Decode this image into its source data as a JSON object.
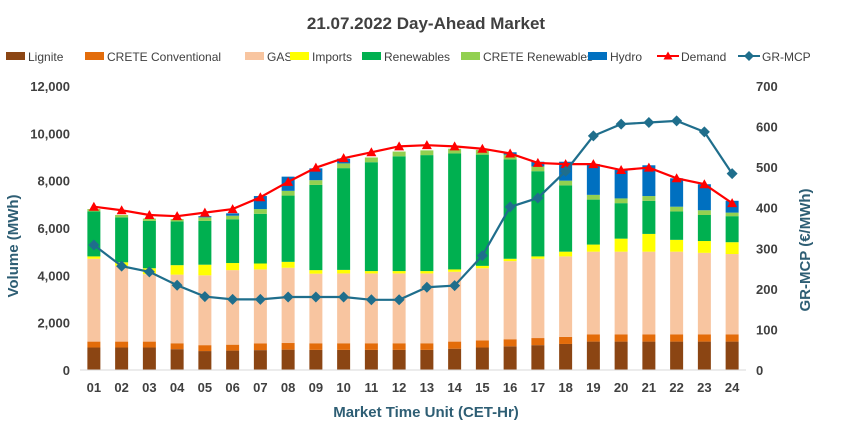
{
  "chart_data": {
    "type": "bar",
    "stacked": true,
    "title": "21.07.2022  Day-Ahead Market",
    "xlabel": "Market Time Unit (CET-Hr)",
    "ylabel": "Volume (MWh)",
    "y2label": "GR-MCP (€/MWh)",
    "ylim": [
      0,
      12000
    ],
    "y2lim": [
      0,
      700
    ],
    "yticks": [
      "0",
      "2,000",
      "4,000",
      "6,000",
      "8,000",
      "10,000",
      "12,000"
    ],
    "y2ticks": [
      "0",
      "100",
      "200",
      "300",
      "400",
      "500",
      "600",
      "700"
    ],
    "grid": false,
    "legend_position": "top",
    "categories": [
      "01",
      "02",
      "03",
      "04",
      "05",
      "06",
      "07",
      "08",
      "09",
      "10",
      "11",
      "12",
      "13",
      "14",
      "15",
      "16",
      "17",
      "18",
      "19",
      "20",
      "21",
      "22",
      "23",
      "24"
    ],
    "series": [
      {
        "name": "Lignite",
        "type": "bar",
        "color": "#8B4513",
        "values": [
          950,
          950,
          950,
          880,
          800,
          820,
          840,
          860,
          850,
          850,
          850,
          850,
          850,
          900,
          950,
          1000,
          1050,
          1100,
          1200,
          1200,
          1200,
          1200,
          1200,
          1200
        ]
      },
      {
        "name": "CRETE Conventional",
        "type": "bar",
        "color": "#E36C0A",
        "values": [
          250,
          250,
          250,
          250,
          250,
          250,
          280,
          280,
          280,
          280,
          280,
          280,
          280,
          300,
          300,
          300,
          300,
          300,
          300,
          300,
          300,
          300,
          300,
          300
        ]
      },
      {
        "name": "GAS",
        "type": "bar",
        "color": "#F8C5A0",
        "values": [
          3500,
          3200,
          2850,
          2900,
          2950,
          3150,
          3130,
          3180,
          2940,
          2950,
          2950,
          2950,
          2950,
          2950,
          3050,
          3300,
          3350,
          3400,
          3500,
          3500,
          3500,
          3500,
          3450,
          3400
        ]
      },
      {
        "name": "Imports",
        "type": "bar",
        "color": "#FFFF00",
        "values": [
          100,
          150,
          250,
          400,
          450,
          300,
          250,
          250,
          150,
          150,
          100,
          100,
          100,
          100,
          100,
          100,
          100,
          200,
          300,
          550,
          750,
          500,
          500,
          500
        ]
      },
      {
        "name": "Renewables",
        "type": "bar",
        "color": "#00B050",
        "values": [
          1900,
          1900,
          2000,
          1850,
          1850,
          1850,
          2100,
          2800,
          3600,
          4300,
          4600,
          4850,
          4900,
          4900,
          4700,
          4200,
          3600,
          2800,
          1900,
          1500,
          1400,
          1200,
          1100,
          1100
        ]
      },
      {
        "name": "CRETE Renewables",
        "type": "bar",
        "color": "#92D050",
        "values": [
          100,
          100,
          100,
          100,
          150,
          150,
          200,
          200,
          200,
          200,
          200,
          200,
          200,
          200,
          200,
          200,
          200,
          200,
          200,
          200,
          200,
          200,
          200,
          150
        ]
      },
      {
        "name": "Hydro",
        "type": "bar",
        "color": "#0070C0",
        "values": [
          0,
          0,
          0,
          0,
          50,
          100,
          550,
          600,
          500,
          200,
          0,
          0,
          0,
          0,
          0,
          100,
          200,
          800,
          1300,
          1200,
          1300,
          1200,
          1100,
          500
        ]
      },
      {
        "name": "Demand",
        "type": "line",
        "axis": "left",
        "color": "#FF0000",
        "marker": "triangle",
        "values": [
          6900,
          6750,
          6550,
          6500,
          6650,
          6800,
          7300,
          7950,
          8550,
          8950,
          9200,
          9450,
          9500,
          9450,
          9350,
          9150,
          8750,
          8700,
          8700,
          8450,
          8550,
          8100,
          7850,
          7050
        ]
      },
      {
        "name": "GR-MCP",
        "type": "line",
        "axis": "right",
        "color": "#1F6E8C",
        "marker": "diamond",
        "values": [
          308,
          256,
          242,
          209,
          181,
          174,
          174,
          180,
          180,
          180,
          173,
          173,
          204,
          208,
          282,
          402,
          424,
          490,
          577,
          606,
          610,
          614,
          587,
          484
        ]
      }
    ]
  }
}
